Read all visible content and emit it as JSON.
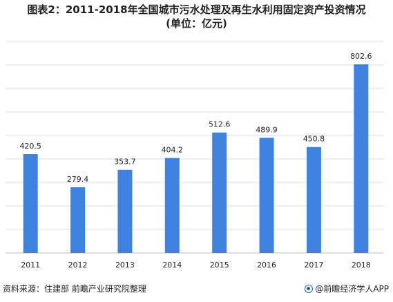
{
  "header": {
    "title_line1": "图表2：2011-2018年全国城市污水处理及再生水利用固定资产投资情况",
    "title_line2": "(单位：亿元)"
  },
  "footer": {
    "source": "资料来源：住建部 前瞻产业研究院整理",
    "brand": "@前瞻经济学人APP",
    "brand_icon": "qianzhan-logo-icon"
  },
  "colors": {
    "bar": "#3f82e0",
    "grid": "#dcdcdc",
    "text": "#222222"
  },
  "chart_data": {
    "type": "bar",
    "title": "2011-2018年全国城市污水处理及再生水利用固定资产投资情况",
    "unit": "亿元",
    "categories": [
      "2011",
      "2012",
      "2013",
      "2014",
      "2015",
      "2016",
      "2017",
      "2018"
    ],
    "values": [
      420.5,
      279.4,
      353.7,
      404.2,
      512.6,
      489.9,
      450.8,
      802.6
    ],
    "ylim": [
      0,
      900
    ],
    "grid": true,
    "legend": "none",
    "xlabel": "",
    "ylabel": ""
  }
}
